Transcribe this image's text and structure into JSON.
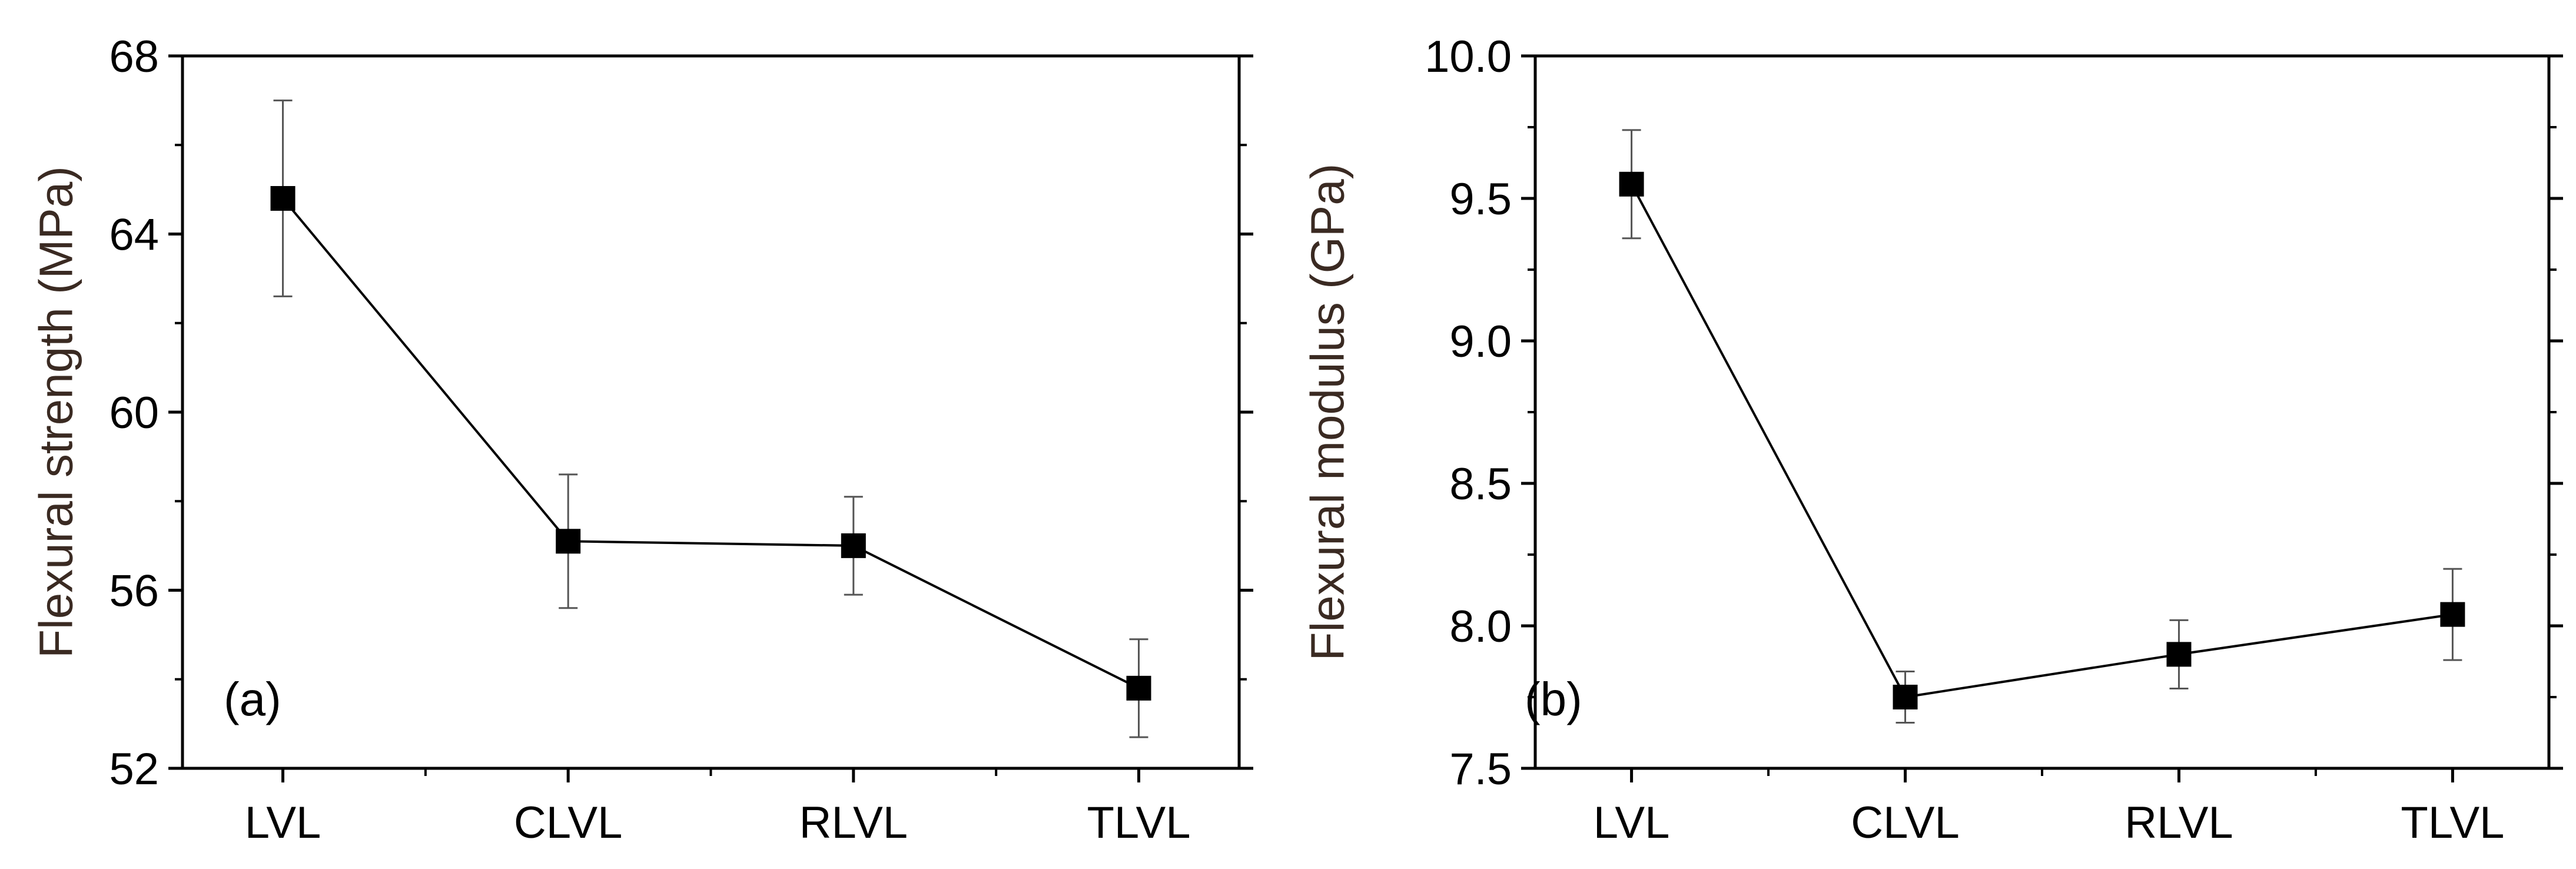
{
  "chart_data": [
    {
      "type": "line",
      "panel_label": "(a)",
      "title": "",
      "xlabel": "",
      "ylabel": "Flexural strength (MPa)",
      "categories": [
        "LVL",
        "CLVL",
        "RLVL",
        "TLVL"
      ],
      "series": [
        {
          "name": "Flexural strength",
          "values": [
            64.8,
            57.1,
            57.0,
            53.8
          ],
          "errors": [
            2.2,
            1.5,
            1.1,
            1.1
          ]
        }
      ],
      "ylim": [
        52,
        68
      ],
      "yticks": [
        52,
        56,
        60,
        64,
        68
      ],
      "ytick_labels": [
        "52",
        "56",
        "60",
        "64",
        "68"
      ],
      "grid": false,
      "colors": {
        "line": "#000000",
        "marker": "#000000",
        "axis_title": "#3a2a22"
      }
    },
    {
      "type": "line",
      "panel_label": "(b)",
      "title": "",
      "xlabel": "",
      "ylabel": "Flexural modulus (GPa)",
      "categories": [
        "LVL",
        "CLVL",
        "RLVL",
        "TLVL"
      ],
      "series": [
        {
          "name": "Flexural modulus",
          "values": [
            9.55,
            7.75,
            7.9,
            8.04
          ],
          "errors": [
            0.19,
            0.09,
            0.12,
            0.16
          ]
        }
      ],
      "ylim": [
        7.5,
        10.0
      ],
      "yticks": [
        7.5,
        8.0,
        8.5,
        9.0,
        9.5,
        10.0
      ],
      "ytick_labels": [
        "7.5",
        "8.0",
        "8.5",
        "9.0",
        "9.5",
        "10.0"
      ],
      "grid": false,
      "colors": {
        "line": "#000000",
        "marker": "#000000",
        "axis_title": "#000000"
      }
    }
  ]
}
